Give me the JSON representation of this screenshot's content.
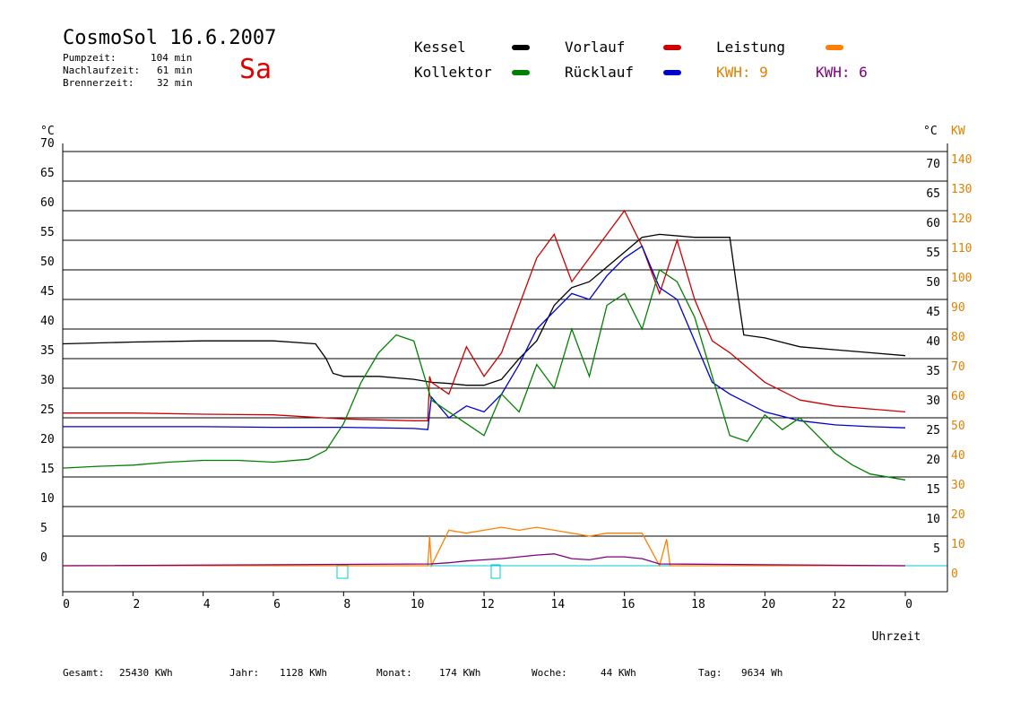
{
  "header": {
    "title": "CosmoSol 16.6.2007",
    "day": "Sa",
    "pump_label": "Pumpzeit:",
    "pump_value": "104 min",
    "after_label": "Nachlaufzeit:",
    "after_value": "61 min",
    "burner_label": "Brennerzeit:",
    "burner_value": "32 min"
  },
  "legend": {
    "kessel": "Kessel",
    "kollektor": "Kollektor",
    "vorlauf": "Vorlauf",
    "ruecklauf": "Rücklauf",
    "leistung": "Leistung",
    "kwh1": "KWH: 9",
    "kwh2": "KWH: 6"
  },
  "footer": {
    "gesamt_label": "Gesamt:",
    "gesamt_value": "25430 KWh",
    "jahr_label": "Jahr:",
    "jahr_value": "1128 KWh",
    "monat_label": "Monat:",
    "monat_value": "174 KWh",
    "woche_label": "Woche:",
    "woche_value": "44 KWh",
    "tag_label": "Tag:",
    "tag_value": "9634 Wh"
  },
  "colors": {
    "kessel": "#000000",
    "kollektor": "#008000",
    "vorlauf": "#cc0000",
    "ruecklauf": "#0000cc",
    "leistung": "#ff8000",
    "leistung2": "#800080",
    "baseline": "#00cccc",
    "axis_right_kw": "#e08000"
  },
  "chart_data": {
    "type": "line",
    "xlabel": "Uhrzeit",
    "ylabel_left": "°C",
    "ylabel_right": "°C",
    "ylabel_right2": "KW",
    "xlim": [
      0,
      24
    ],
    "ylim": [
      0,
      70
    ],
    "x_ticks": [
      "0",
      "2",
      "4",
      "6",
      "8",
      "10",
      "12",
      "14",
      "16",
      "18",
      "20",
      "22",
      "0"
    ],
    "y_ticks_left": [
      "70",
      "65",
      "60",
      "55",
      "50",
      "45",
      "40",
      "35",
      "30",
      "25",
      "20",
      "15",
      "10",
      "5",
      "0"
    ],
    "y_ticks_right": [
      "70",
      "65",
      "60",
      "55",
      "50",
      "45",
      "40",
      "35",
      "30",
      "25",
      "20",
      "15",
      "10",
      "5"
    ],
    "y_ticks_kw": [
      "140",
      "130",
      "120",
      "110",
      "100",
      "90",
      "80",
      "70",
      "60",
      "50",
      "40",
      "30",
      "20",
      "10",
      "0"
    ],
    "grid": true,
    "series": [
      {
        "name": "Kessel",
        "color": "#000000",
        "x": [
          0,
          2,
          4,
          6,
          7.2,
          7.5,
          7.7,
          8,
          9,
          10,
          10.5,
          11,
          11.5,
          12,
          12.5,
          13,
          13.5,
          14,
          14.5,
          15,
          15.5,
          16,
          16.5,
          17,
          18,
          19,
          19.2,
          19.4,
          20,
          21,
          22,
          23,
          24
        ],
        "y": [
          37.5,
          37.8,
          38,
          38,
          37.5,
          35,
          32.5,
          32,
          32,
          31.5,
          31,
          30.8,
          30.5,
          30.5,
          31.5,
          35,
          38,
          44,
          47,
          48,
          50.5,
          53,
          55.5,
          56,
          55.5,
          55.5,
          47,
          39,
          38.5,
          37,
          36.5,
          36,
          35.5
        ]
      },
      {
        "name": "Vorlauf",
        "color": "#cc0000",
        "x": [
          0,
          2,
          4,
          6,
          8,
          10,
          10.4,
          10.45,
          10.5,
          11,
          11.5,
          12,
          12.5,
          13,
          13.5,
          14,
          14.5,
          15,
          15.5,
          16,
          16.5,
          17,
          17.5,
          18,
          18.5,
          19,
          20,
          21,
          22,
          23,
          24
        ],
        "y": [
          25.8,
          25.8,
          25.6,
          25.5,
          24.8,
          24.5,
          24.5,
          32,
          31,
          29,
          37,
          32,
          36,
          44,
          52,
          56,
          48,
          52,
          56,
          60,
          54,
          46,
          55,
          45,
          38,
          36,
          31,
          28,
          27,
          26.5,
          26
        ]
      },
      {
        "name": "Rücklauf",
        "color": "#0000cc",
        "x": [
          0,
          2,
          4,
          6,
          8,
          10,
          10.4,
          10.5,
          11,
          11.5,
          12,
          12.5,
          13,
          13.5,
          14,
          14.5,
          15,
          15.5,
          16,
          16.5,
          17,
          17.5,
          18,
          18.5,
          19,
          20,
          21,
          22,
          23,
          24
        ],
        "y": [
          23.5,
          23.5,
          23.5,
          23.4,
          23.4,
          23.2,
          23,
          28.5,
          25,
          27,
          26,
          29,
          34,
          40,
          43,
          46,
          45,
          49,
          52,
          54,
          47,
          45,
          38,
          31,
          29,
          26,
          24.5,
          23.8,
          23.5,
          23.3
        ]
      },
      {
        "name": "Kollektor",
        "color": "#008000",
        "x": [
          0,
          1,
          2,
          3,
          4,
          5,
          6,
          7,
          7.5,
          8,
          8.5,
          9,
          9.5,
          10,
          10.5,
          11,
          11.5,
          12,
          12.5,
          13,
          13.5,
          14,
          14.5,
          15,
          15.5,
          16,
          16.5,
          17,
          17.5,
          18,
          18.5,
          19,
          19.5,
          20,
          20.5,
          21,
          21.5,
          22,
          22.5,
          23,
          24
        ],
        "y": [
          16.5,
          16.8,
          17,
          17.5,
          17.8,
          17.8,
          17.5,
          18,
          19.5,
          24,
          31,
          36,
          39,
          38,
          28,
          26,
          24,
          22,
          29,
          26,
          34,
          30,
          40,
          32,
          44,
          46,
          40,
          50,
          48,
          42,
          32,
          22,
          21,
          25.5,
          23,
          25,
          22,
          19,
          17,
          15.5,
          14.5
        ]
      },
      {
        "name": "Leistung",
        "color": "#ff8000",
        "x": [
          0,
          10.4,
          10.45,
          10.5,
          11,
          11.5,
          12,
          12.5,
          13,
          13.5,
          14,
          14.5,
          15,
          15.5,
          16,
          16.5,
          17,
          17.2,
          17.3,
          24
        ],
        "y": [
          0,
          0,
          5,
          0,
          6,
          5.5,
          6,
          6.5,
          6,
          6.5,
          6,
          5.5,
          5,
          5.5,
          5.5,
          5.5,
          0,
          4.5,
          0,
          0
        ]
      },
      {
        "name": "KWH: 6",
        "color": "#800080",
        "x": [
          0,
          10.5,
          11,
          11.5,
          12,
          12.5,
          13,
          13.5,
          14,
          14.5,
          15,
          15.5,
          16,
          16.5,
          17,
          24
        ],
        "y": [
          0,
          0.3,
          0.5,
          0.8,
          1,
          1.2,
          1.5,
          1.8,
          2,
          1.2,
          1,
          1.5,
          1.5,
          1.2,
          0.3,
          0
        ]
      }
    ]
  }
}
